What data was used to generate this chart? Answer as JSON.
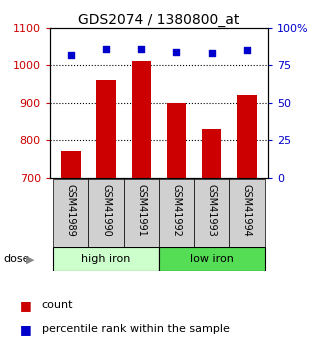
{
  "title": "GDS2074 / 1380800_at",
  "categories": [
    "GSM41989",
    "GSM41990",
    "GSM41991",
    "GSM41992",
    "GSM41993",
    "GSM41994"
  ],
  "bar_values": [
    770,
    960,
    1010,
    900,
    830,
    920
  ],
  "bar_baseline": 700,
  "bar_color": "#cc0000",
  "blue_values": [
    82,
    86,
    86,
    84,
    83,
    85
  ],
  "blue_color": "#0000cc",
  "ylim_left": [
    700,
    1100
  ],
  "ylim_right": [
    0,
    100
  ],
  "yticks_left": [
    700,
    800,
    900,
    1000,
    1100
  ],
  "ytick_labels_left": [
    "700",
    "800",
    "900",
    "1000",
    "1100"
  ],
  "yticks_right": [
    0,
    25,
    50,
    75,
    100
  ],
  "ytick_labels_right": [
    "0",
    "25",
    "50",
    "75",
    "100%"
  ],
  "group1_label": "high iron",
  "group2_label": "low iron",
  "group1_color": "#ccffcc",
  "group2_color": "#55dd55",
  "dose_label": "dose",
  "legend_count_label": "count",
  "legend_pct_label": "percentile rank within the sample",
  "grid_dotted_values": [
    800,
    900,
    1000
  ],
  "tick_label_color_left": "#cc0000",
  "tick_label_color_right": "#0000cc",
  "label_box_color": "#d0d0d0",
  "title_fontsize": 10
}
